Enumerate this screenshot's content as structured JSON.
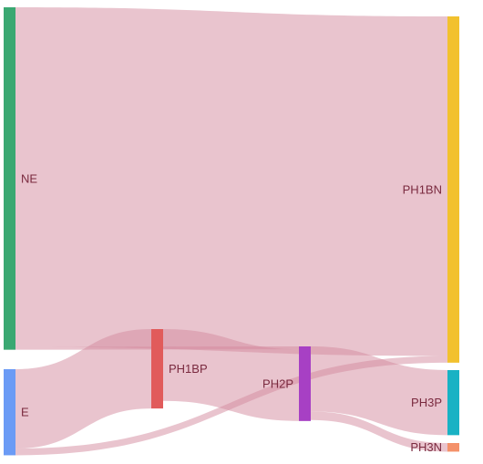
{
  "chart_data": {
    "type": "sankey",
    "nodes": [
      {
        "id": "NE",
        "label": "NE",
        "color": "#3aa872"
      },
      {
        "id": "E",
        "label": "E",
        "color": "#6b9bf5"
      },
      {
        "id": "PH1BP",
        "label": "PH1BP",
        "color": "#e15b5b"
      },
      {
        "id": "PH2P",
        "label": "PH2P",
        "color": "#a740c4"
      },
      {
        "id": "PH1BN",
        "label": "PH1BN",
        "color": "#f2c12e"
      },
      {
        "id": "PH3P",
        "label": "PH3P",
        "color": "#19b2c4"
      },
      {
        "id": "PH3N",
        "label": "PH3N",
        "color": "#f4916a"
      }
    ],
    "links": [
      {
        "source": "NE",
        "target": "PH1BN",
        "value": 355
      },
      {
        "source": "NE",
        "target": "PH2P",
        "value": 3
      },
      {
        "source": "E",
        "target": "PH1BP",
        "value": 83
      },
      {
        "source": "E",
        "target": "PH1BN",
        "value": 7
      },
      {
        "source": "PH1BP",
        "target": "PH2P",
        "value": 75
      },
      {
        "source": "PH2P",
        "target": "PH3P",
        "value": 68
      },
      {
        "source": "PH2P",
        "target": "PH3N",
        "value": 9
      }
    ],
    "link_color": "#d4899d",
    "label_color": "#7a2a3f"
  }
}
